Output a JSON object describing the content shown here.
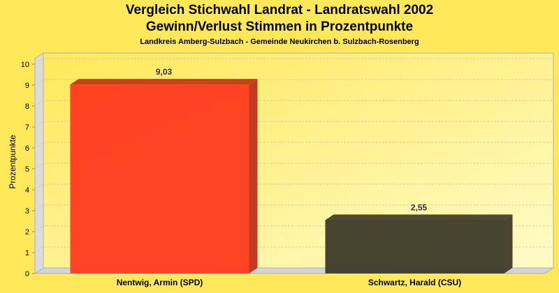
{
  "chart_data": {
    "type": "bar",
    "title": "Vergleich Stichwahl Landrat - Landratswahl 2002",
    "subtitle": "Gewinn/Verlust Stimmen in Prozentpunkte",
    "subtitle2": "Landkreis Amberg-Sulzbach - Gemeinde Neukirchen b. Sulzbach-Rosenberg",
    "xlabel": "",
    "ylabel": "Prozentpunkte",
    "ylim": [
      0,
      10
    ],
    "yticks": [
      0,
      1,
      2,
      3,
      4,
      5,
      6,
      7,
      8,
      9,
      10
    ],
    "grid": true,
    "categories": [
      "Nentwig, Armin (SPD)",
      "Schwartz, Harald (CSU)"
    ],
    "values": [
      9.03,
      2.55
    ],
    "value_labels": [
      "9,03",
      "2,55"
    ],
    "colors": [
      "#ff3a1e",
      "#3c3a28"
    ],
    "side_colors": [
      "#c43a20",
      "#4a4630"
    ],
    "top_colors": [
      "#c8401c",
      "#4e4a30"
    ]
  }
}
